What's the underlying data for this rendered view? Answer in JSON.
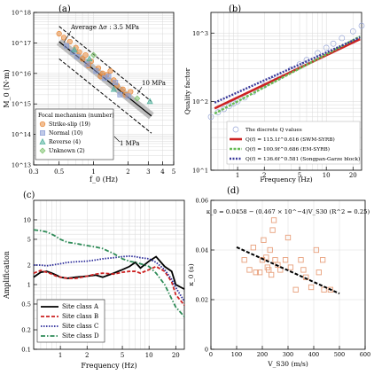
{
  "chart_data": [
    {
      "panel": "(a)",
      "type": "scatter",
      "xlabel": "f_0 (Hz)",
      "ylabel": "M_0 (N·m)",
      "xscale": "log",
      "yscale": "log",
      "xlim": [
        0.3,
        5
      ],
      "ylim": [
        10000000000000.0,
        1e+18
      ],
      "xticks": [
        "0.3",
        "0.5",
        "1",
        "2",
        "3",
        "4",
        "5"
      ],
      "yticks": [
        "10^13",
        "10^14",
        "10^15",
        "10^16",
        "10^17",
        "10^18"
      ],
      "legend_title": "Focal mechanism (number)",
      "legend_position": "bottom-left",
      "annotations": {
        "average": "Average Δσ : 3.5 MPa",
        "upper": "10 MPa",
        "lower": "1 MPa"
      },
      "lines": [
        {
          "name": "Average",
          "x": [
            0.5,
            3.2
          ],
          "y": [
            1.1e+17,
            400000000000000.0
          ]
        },
        {
          "name": "10 MPa",
          "x": [
            0.5,
            3.2
          ],
          "y": [
            3.5e+17,
            1200000000000000.0
          ]
        },
        {
          "name": "1 MPa",
          "x": [
            0.5,
            3.2
          ],
          "y": [
            3e+16,
            110000000000000.0
          ]
        }
      ],
      "series": [
        {
          "name": "Strike-slip (19)",
          "points": [
            [
              0.5,
              2e+17
            ],
            [
              0.62,
              1.1e+17
            ],
            [
              0.7,
              7e+16
            ],
            [
              0.75,
              5e+16
            ],
            [
              0.8,
              3e+16
            ],
            [
              0.85,
              4e+16
            ],
            [
              0.95,
              2.5e+16
            ],
            [
              1.1,
              1.5e+16
            ],
            [
              1.2,
              1e+16
            ],
            [
              1.3,
              9000000000000000.0
            ],
            [
              1.4,
              1.2e+16
            ],
            [
              1.5,
              6000000000000000.0
            ],
            [
              1.6,
              4000000000000000.0
            ],
            [
              1.8,
              3000000000000000.0
            ],
            [
              1.9,
              2000000000000000.0
            ],
            [
              2.1,
              2500000000000000.0
            ],
            [
              0.55,
              1.5e+17
            ],
            [
              0.9,
              1.8e+16
            ],
            [
              1.15,
              8000000000000000.0
            ]
          ]
        },
        {
          "name": "Normal (10)",
          "points": [
            [
              0.58,
              8e+16
            ],
            [
              0.66,
              5e+16
            ],
            [
              0.72,
              3.5e+16
            ],
            [
              0.88,
              2e+16
            ],
            [
              1.05,
              1.2e+16
            ],
            [
              1.25,
              7000000000000000.0
            ],
            [
              1.35,
              8000000000000000.0
            ],
            [
              1.55,
              5000000000000000.0
            ],
            [
              1.7,
              2000000000000000.0
            ],
            [
              2.0,
              1800000000000000.0
            ]
          ]
        },
        {
          "name": "Reverse (4)",
          "points": [
            [
              0.68,
              6e+16
            ],
            [
              0.92,
              3e+16
            ],
            [
              1.5,
              3000000000000000.0
            ],
            [
              3.1,
              1200000000000000.0
            ]
          ]
        },
        {
          "name": "Unknown (2)",
          "points": [
            [
              1.0,
              4e+16
            ],
            [
              2.4,
              1500000000000000.0
            ]
          ]
        }
      ]
    },
    {
      "panel": "(b)",
      "type": "line",
      "xlabel": "Frequency (Hz)",
      "ylabel": "Quality factor",
      "xscale": "log",
      "yscale": "log",
      "xlim": [
        0.5,
        25
      ],
      "ylim": [
        10,
        2000
      ],
      "xticks": [
        "1",
        "2",
        "5",
        "10",
        "20"
      ],
      "yticks": [
        "10^1",
        "10^2",
        "10^3"
      ],
      "legend_position": "bottom-right",
      "series": [
        {
          "name": "The discrete Q values",
          "kind": "markers",
          "x": [
            0.5,
            0.6,
            0.7,
            0.8,
            0.9,
            1,
            1.2,
            1.5,
            2,
            2.5,
            3,
            4,
            5,
            6,
            8,
            10,
            12,
            15,
            20,
            25
          ],
          "y": [
            60,
            70,
            78,
            86,
            94,
            101,
            115,
            138,
            172,
            205,
            236,
            295,
            350,
            405,
            510,
            610,
            700,
            845,
            1060,
            1280
          ]
        },
        {
          "name": "Q(f) = 115.1f^0.616 (SWM-SYRB)",
          "kind": "line",
          "a": 115.1,
          "b": 0.616
        },
        {
          "name": "Q(f) = 100.9f^0.686 (EM-SYRB)",
          "kind": "line",
          "a": 100.9,
          "b": 0.686
        },
        {
          "name": "Q(f) = 136.6f^0.581 (Songpan-Garze block)",
          "kind": "line",
          "a": 136.6,
          "b": 0.581
        }
      ]
    },
    {
      "panel": "(c)",
      "type": "line",
      "xlabel": "Frequency (Hz)",
      "ylabel": "Amplification",
      "xscale": "log",
      "yscale": "log",
      "xlim": [
        0.5,
        25
      ],
      "ylim": [
        0.1,
        20
      ],
      "xticks": [
        "1",
        "2",
        "5",
        "10",
        "20"
      ],
      "yticks": [
        "0.1",
        "0.2",
        "0.5",
        "1",
        "2",
        "5",
        "10"
      ],
      "legend_position": "bottom-left",
      "x": [
        0.5,
        0.6,
        0.7,
        0.8,
        0.9,
        1,
        1.2,
        1.5,
        2,
        2.5,
        3,
        4,
        5,
        6,
        7,
        8,
        10,
        12,
        15,
        18,
        20,
        25
      ],
      "series": [
        {
          "name": "Site class A",
          "y": [
            1.3,
            1.55,
            1.6,
            1.5,
            1.4,
            1.3,
            1.25,
            1.3,
            1.35,
            1.4,
            1.3,
            1.5,
            1.7,
            1.9,
            2.2,
            1.8,
            2.3,
            2.7,
            1.9,
            1.6,
            1.0,
            0.85
          ]
        },
        {
          "name": "Site class B",
          "y": [
            1.5,
            1.65,
            1.55,
            1.45,
            1.35,
            1.3,
            1.25,
            1.25,
            1.35,
            1.45,
            1.5,
            1.45,
            1.55,
            1.6,
            1.6,
            1.5,
            1.7,
            1.9,
            1.6,
            1.1,
            0.7,
            0.48
          ]
        },
        {
          "name": "Site class C",
          "y": [
            2.0,
            2.0,
            1.95,
            2.0,
            2.05,
            2.1,
            2.2,
            2.25,
            2.3,
            2.4,
            2.5,
            2.6,
            2.7,
            2.75,
            2.7,
            2.6,
            2.5,
            2.2,
            1.7,
            1.2,
            0.9,
            0.55
          ]
        },
        {
          "name": "Site class D",
          "y": [
            7.0,
            6.8,
            6.5,
            6.0,
            5.5,
            5.0,
            4.5,
            4.3,
            4.0,
            3.8,
            3.6,
            3.0,
            2.5,
            2.3,
            2.2,
            2.1,
            1.9,
            1.5,
            1.0,
            0.6,
            0.45,
            0.32
          ]
        }
      ]
    },
    {
      "panel": "(d)",
      "type": "scatter",
      "xlabel": "V_S30 (m/s)",
      "ylabel": "κ_0 (s)",
      "xlim": [
        0,
        600
      ],
      "ylim": [
        0,
        0.06
      ],
      "xticks": [
        "0",
        "100",
        "200",
        "300",
        "400",
        "500",
        "600"
      ],
      "yticks": [
        "0",
        "0.02",
        "0.04",
        "0.06"
      ],
      "equation": "κ_0 = 0.0458 − (0.467 × 10^−4)V_S30 (R^2 = 0.25)",
      "fit": {
        "a": 0.0458,
        "b": -4.67e-05,
        "x": [
          100,
          500
        ]
      },
      "points": [
        [
          130,
          0.036
        ],
        [
          150,
          0.032
        ],
        [
          165,
          0.041
        ],
        [
          175,
          0.031
        ],
        [
          190,
          0.031
        ],
        [
          200,
          0.036
        ],
        [
          205,
          0.044
        ],
        [
          215,
          0.037
        ],
        [
          220,
          0.033
        ],
        [
          225,
          0.032
        ],
        [
          230,
          0.04
        ],
        [
          235,
          0.03
        ],
        [
          240,
          0.048
        ],
        [
          245,
          0.052
        ],
        [
          250,
          0.036
        ],
        [
          260,
          0.034
        ],
        [
          270,
          0.032
        ],
        [
          290,
          0.036
        ],
        [
          300,
          0.045
        ],
        [
          310,
          0.033
        ],
        [
          330,
          0.024
        ],
        [
          350,
          0.036
        ],
        [
          360,
          0.032
        ],
        [
          370,
          0.029
        ],
        [
          390,
          0.025
        ],
        [
          410,
          0.04
        ],
        [
          420,
          0.031
        ],
        [
          435,
          0.036
        ],
        [
          440,
          0.024
        ],
        [
          465,
          0.024
        ]
      ]
    }
  ],
  "colors": {
    "strike": "#e88a3c",
    "normal": "#8c9ed6",
    "reverse": "#4daf9a",
    "unknown": "#7cc16c",
    "swm": "#cc2222",
    "em": "#66bb55",
    "songpan": "#3a3a9a",
    "disc": "#9aa8d8",
    "A": "#000000",
    "B": "#cc2222",
    "C": "#2a2a99",
    "D": "#2e8b57",
    "d_marker": "#e8a07c"
  }
}
